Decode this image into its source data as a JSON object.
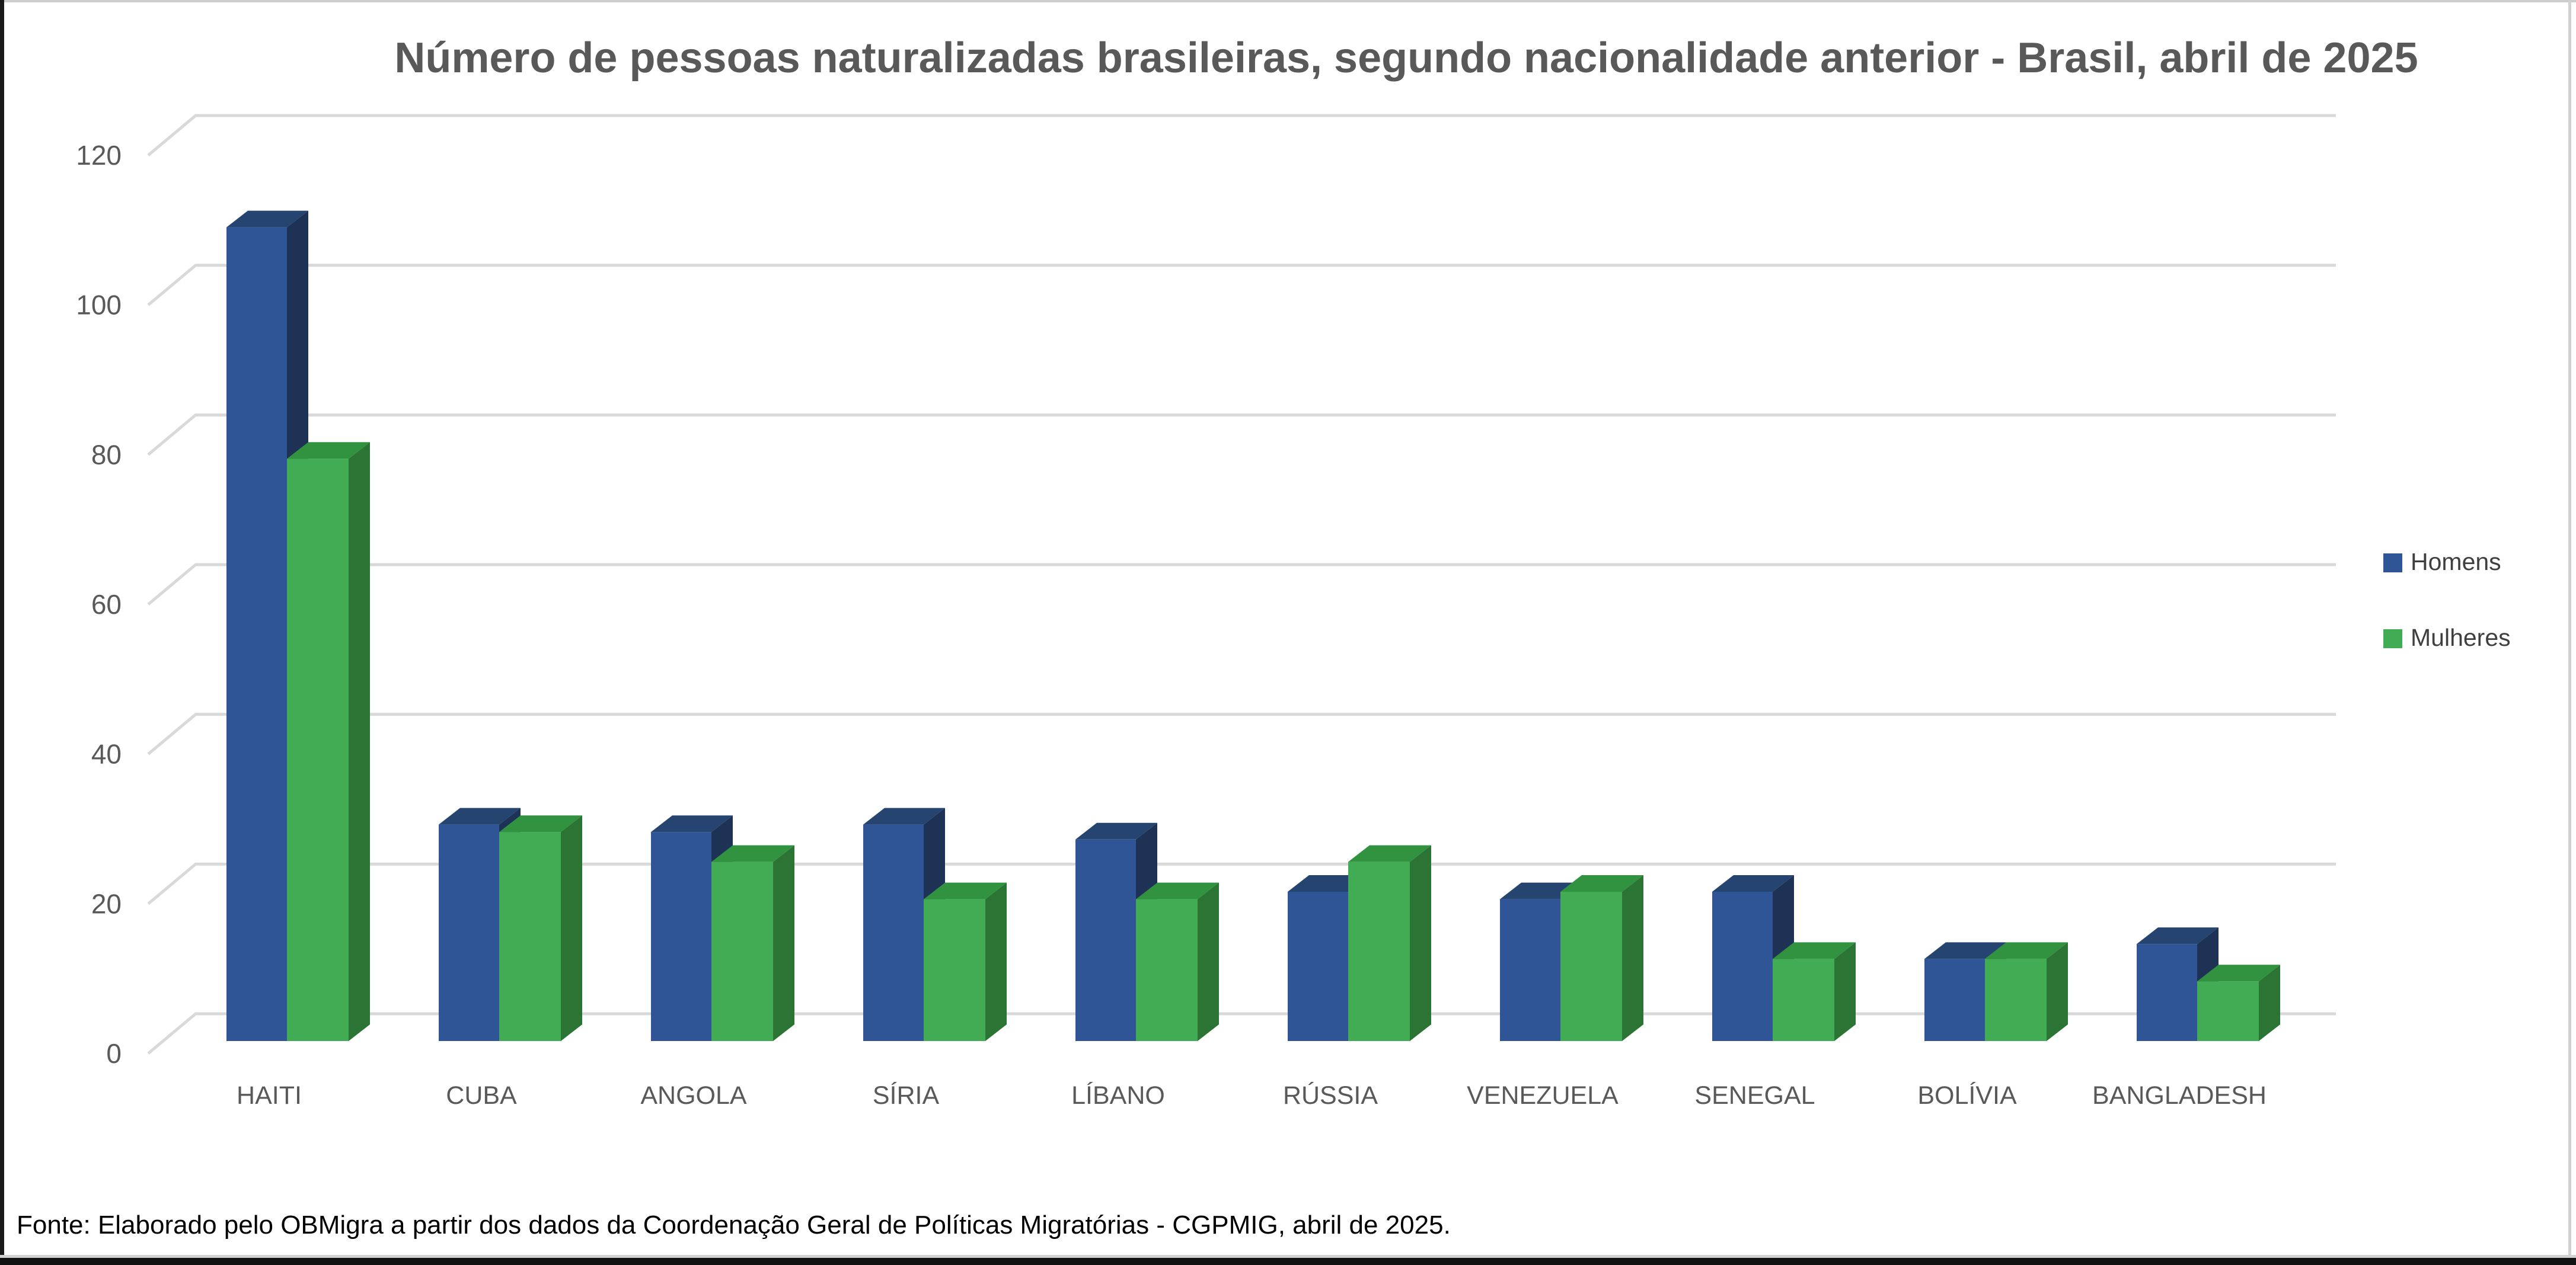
{
  "footer": {
    "text": "Fonte: Elaborado pelo OBMigra a partir dos dados da Coordenação Geral de Políticas Migratórias - CGPMIG, abril de 2025."
  },
  "chart_data": {
    "type": "bar",
    "style": "3d-column",
    "title": "Número de pessoas naturalizadas brasileiras, segundo nacionalidade anterior - Brasil, abril de 2025",
    "xlabel": "",
    "ylabel": "",
    "categories": [
      "HAITI",
      "CUBA",
      "ANGOLA",
      "SÍRIA",
      "LÍBANO",
      "RÚSSIA",
      "VENEZUELA",
      "SENEGAL",
      "BOLÍVIA",
      "BANGLADESH"
    ],
    "series": [
      {
        "name": "Homens",
        "color": "#2F5596",
        "color_top": "#254570",
        "color_side": "#1D3255",
        "values": [
          109,
          29,
          28,
          29,
          27,
          20,
          19,
          20,
          11,
          13
        ]
      },
      {
        "name": "Mulheres",
        "color": "#41AC53",
        "color_top": "#319340",
        "color_side": "#2B7434",
        "values": [
          78,
          28,
          24,
          19,
          19,
          24,
          20,
          11,
          11,
          8
        ]
      }
    ],
    "yticks": [
      0,
      20,
      40,
      60,
      80,
      100,
      120
    ],
    "ylim": [
      0,
      120
    ],
    "grid": true,
    "gridline_color": "#D9D9D9",
    "text_color": "#595959",
    "legend_position": "right",
    "background": "#FFFFFF"
  }
}
